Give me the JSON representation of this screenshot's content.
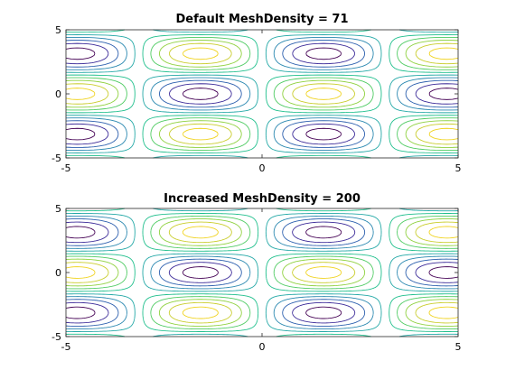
{
  "chart_data": [
    {
      "type": "contour",
      "title": "Default MeshDensity = 71",
      "function": "sin(x)*cos(y)",
      "mesh_density": 71,
      "xlim": [
        -5,
        5
      ],
      "ylim": [
        -5,
        5
      ],
      "xticks": [
        "-5",
        "0",
        "5"
      ],
      "yticks": [
        "-5",
        "0",
        "5"
      ],
      "levels": [
        -0.9,
        -0.7,
        -0.5,
        -0.3,
        -0.1,
        0.1,
        0.3,
        0.5,
        0.7,
        0.9
      ],
      "colormap": [
        "#440154",
        "#3b2a98",
        "#2c5fae",
        "#2a88b0",
        "#23a8a6",
        "#1fbf8c",
        "#4ecb62",
        "#8fd13f",
        "#c9cd2c",
        "#f0d31f"
      ],
      "grid": false
    },
    {
      "type": "contour",
      "title": "Increased MeshDensity = 200",
      "function": "sin(x)*cos(y)",
      "mesh_density": 200,
      "xlim": [
        -5,
        5
      ],
      "ylim": [
        -5,
        5
      ],
      "xticks": [
        "-5",
        "0",
        "5"
      ],
      "yticks": [
        "-5",
        "0",
        "5"
      ],
      "levels": [
        -0.9,
        -0.7,
        -0.5,
        -0.3,
        -0.1,
        0.1,
        0.3,
        0.5,
        0.7,
        0.9
      ],
      "colormap": [
        "#440154",
        "#3b2a98",
        "#2c5fae",
        "#2a88b0",
        "#23a8a6",
        "#1fbf8c",
        "#4ecb62",
        "#8fd13f",
        "#c9cd2c",
        "#f0d31f"
      ],
      "grid": false
    }
  ]
}
